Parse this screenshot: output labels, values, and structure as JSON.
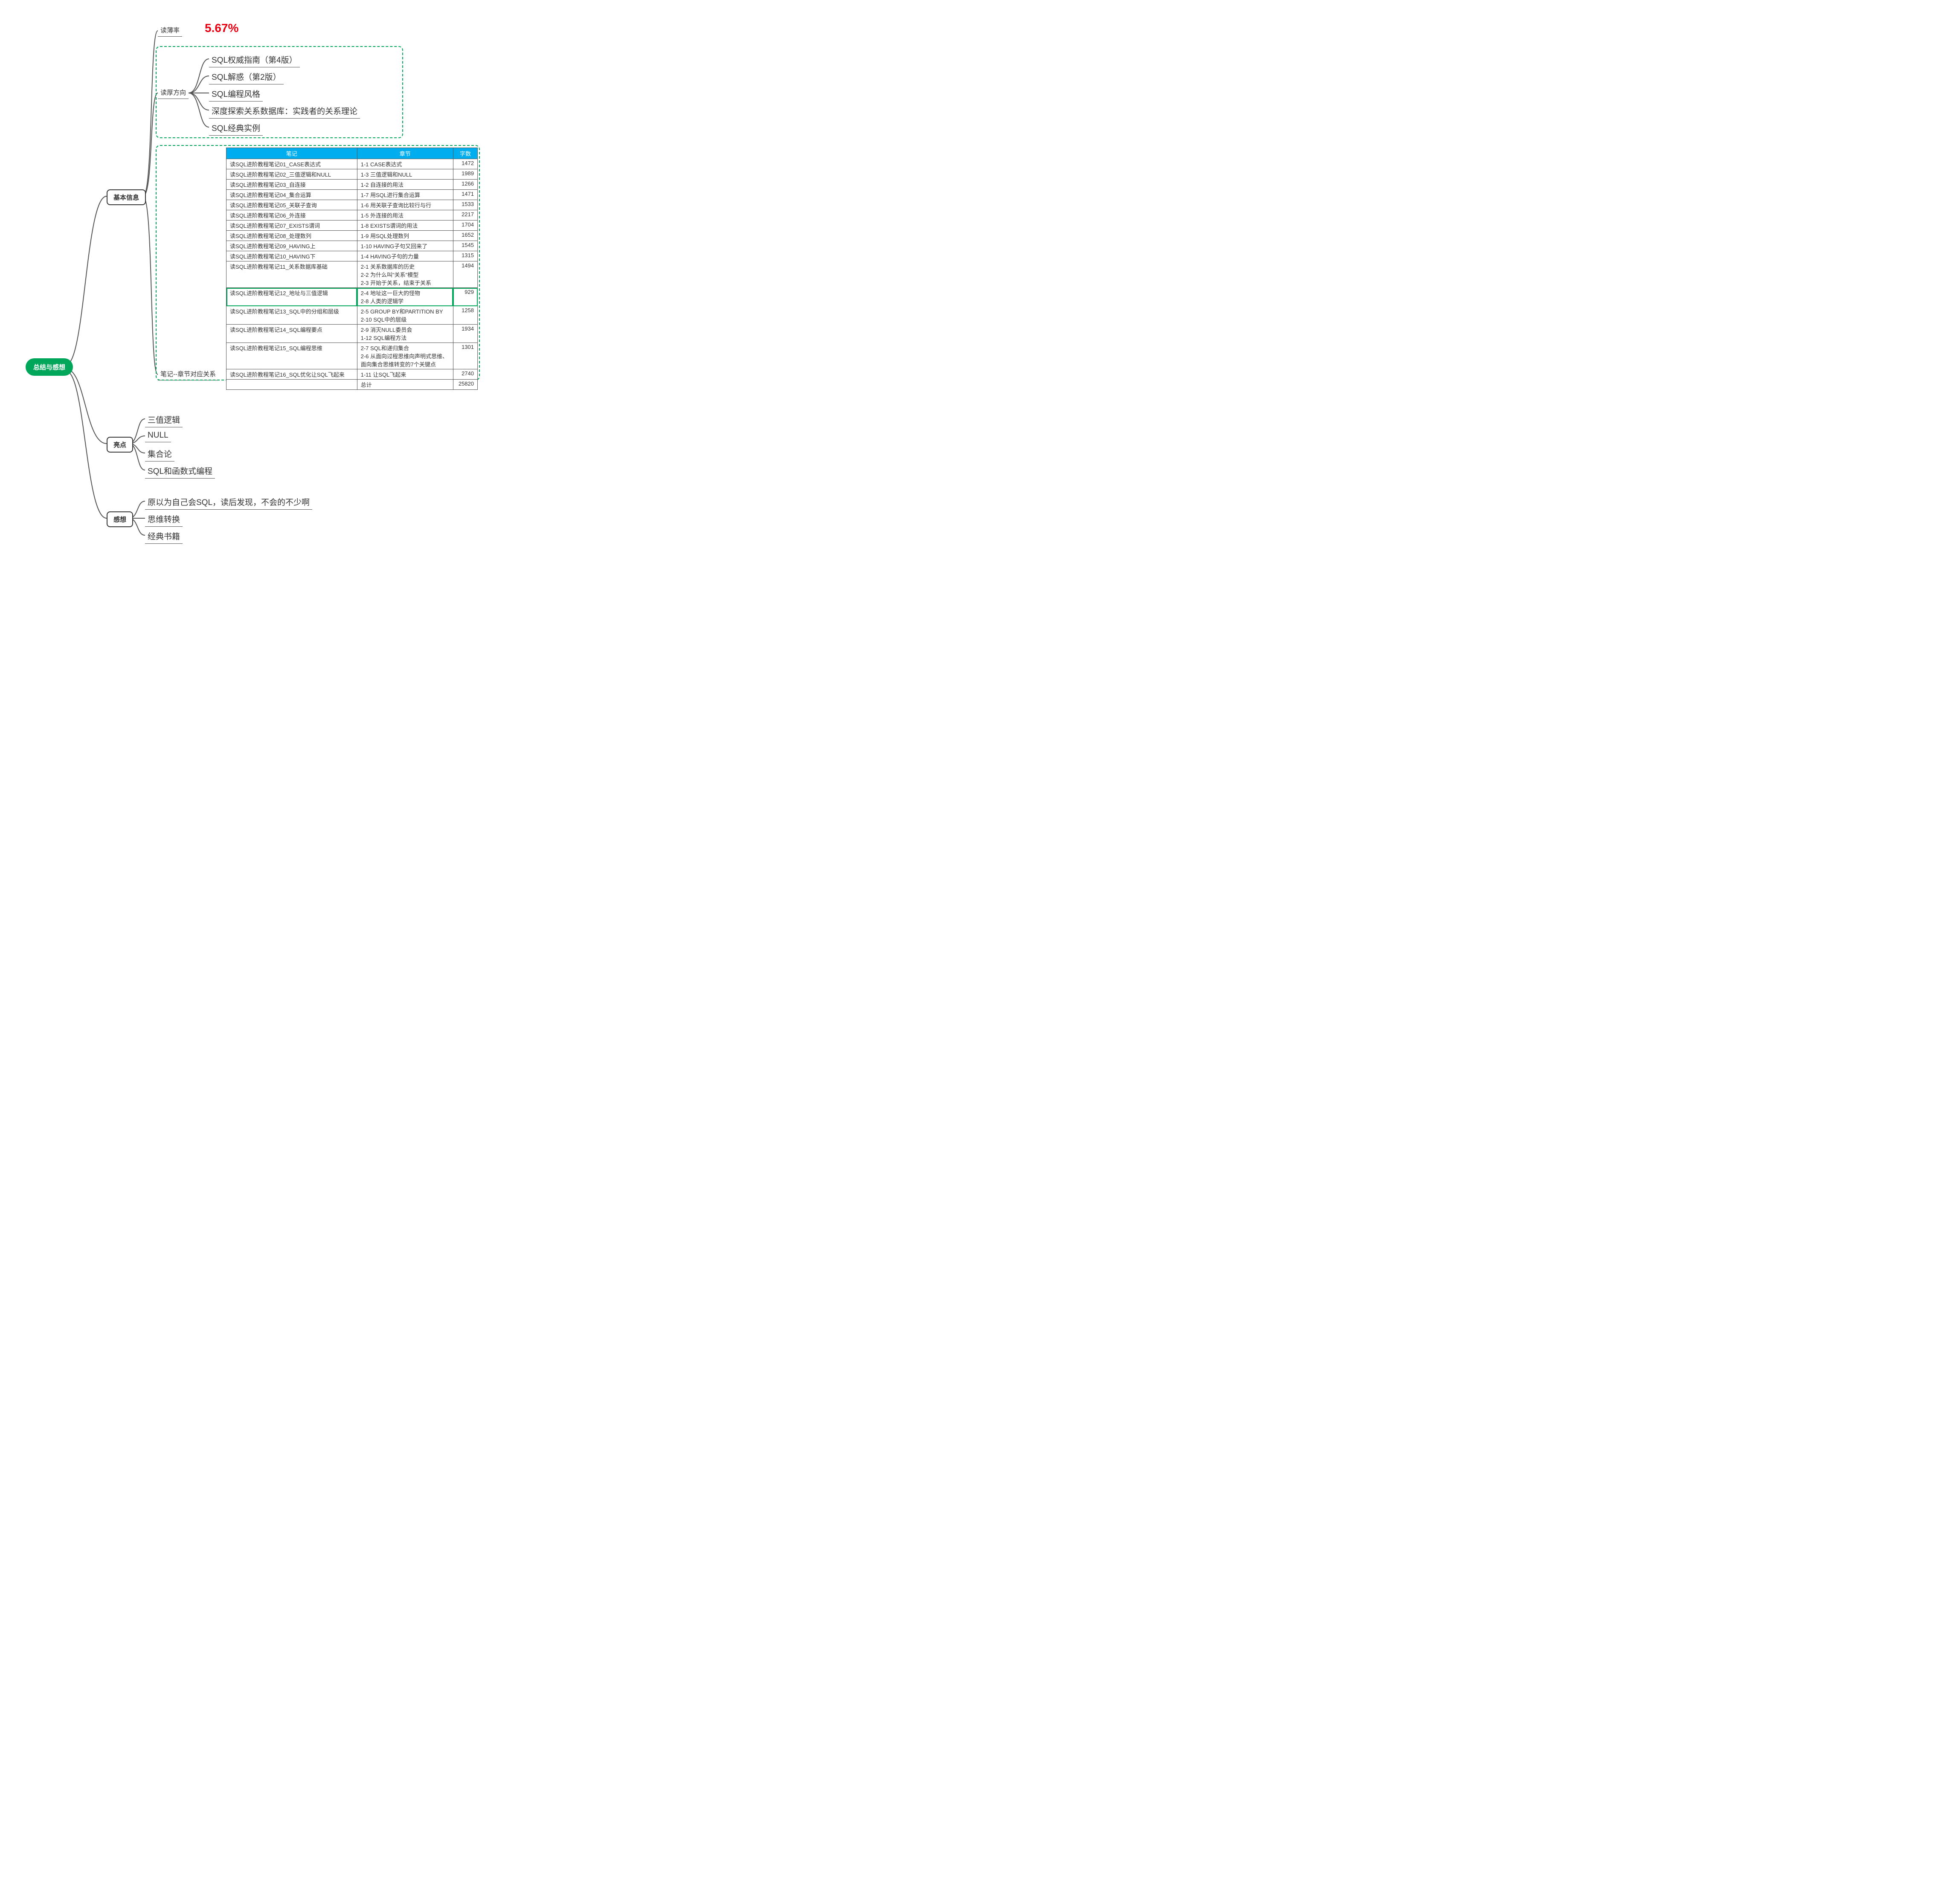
{
  "colors": {
    "root_bg": "#00a65a",
    "root_fg": "#ffffff",
    "accent_red": "#e60012",
    "table_header_bg": "#00aeef",
    "table_header_fg": "#ffffff",
    "border": "#555555",
    "green_dash": "#00a65a",
    "connector": "#555555"
  },
  "root": {
    "label": "总结与感想"
  },
  "branches": {
    "basic": {
      "label": "基本信息",
      "rate_label": "读薄率",
      "rate_value": "5.67%",
      "thicken_label": "读厚方向",
      "thicken_items": [
        "SQL权威指南（第4版）",
        "SQL解惑（第2版）",
        "SQL编程风格",
        "深度探索关系数据库：实践者的关系理论",
        "SQL经典实例"
      ],
      "notes_label": "笔记--章节对应关系",
      "table": {
        "headers": [
          "笔记",
          "章节",
          "字数"
        ],
        "highlight_row_index": 11,
        "rows": [
          {
            "note": "读SQL进阶教程笔记01_CASE表达式",
            "chapter": "1-1 CASE表达式",
            "words": 1472
          },
          {
            "note": "读SQL进阶教程笔记02_三值逻辑和NULL",
            "chapter": "1-3 三值逻辑和NULL",
            "words": 1989
          },
          {
            "note": "读SQL进阶教程笔记03_自连接",
            "chapter": "1-2 自连接的用法",
            "words": 1266
          },
          {
            "note": "读SQL进阶教程笔记04_集合运算",
            "chapter": "1-7 用SQL进行集合运算",
            "words": 1471
          },
          {
            "note": "读SQL进阶教程笔记05_关联子查询",
            "chapter": "1-6 用关联子查询比较行与行",
            "words": 1533
          },
          {
            "note": "读SQL进阶教程笔记06_外连接",
            "chapter": "1-5 外连接的用法",
            "words": 2217
          },
          {
            "note": "读SQL进阶教程笔记07_EXISTS谓词",
            "chapter": "1-8 EXISTS谓词的用法",
            "words": 1704
          },
          {
            "note": "读SQL进阶教程笔记08_处理数列",
            "chapter": "1-9 用SQL处理数列",
            "words": 1652
          },
          {
            "note": "读SQL进阶教程笔记09_HAVING上",
            "chapter": "1-10 HAVING子句又回来了",
            "words": 1545
          },
          {
            "note": "读SQL进阶教程笔记10_HAVING下",
            "chapter": "1-4 HAVING子句的力量",
            "words": 1315
          },
          {
            "note": "读SQL进阶教程笔记11_关系数据库基础",
            "chapter": "2-1 关系数据库的历史\n2-2 为什么叫\"关系\"模型\n2-3 开始于关系，结束于关系",
            "words": 1494
          },
          {
            "note": "读SQL进阶教程笔记12_地址与三值逻辑",
            "chapter": "2-4 地址这一巨大的怪物\n2-8 人类的逻辑学",
            "words": 929
          },
          {
            "note": "读SQL进阶教程笔记13_SQL中的分组和层级",
            "chapter": "2-5 GROUP BY和PARTITION BY\n2-10 SQL中的层级",
            "words": 1258
          },
          {
            "note": "读SQL进阶教程笔记14_SQL编程要点",
            "chapter": "2-9 消灭NULL委员会\n1-12 SQL编程方法",
            "words": 1934
          },
          {
            "note": "读SQL进阶教程笔记15_SQL编程思维",
            "chapter": "2-7 SQL和递归集合\n2-6 从面向过程思维向声明式思维、面向集合思维转变的7个关键点",
            "words": 1301
          },
          {
            "note": "读SQL进阶教程笔记16_SQL优化让SQL飞起来",
            "chapter": "1-11 让SQL飞起来",
            "words": 2740
          }
        ],
        "total_label": "总计",
        "total_words": 25820
      }
    },
    "highlights": {
      "label": "亮点",
      "items": [
        "三值逻辑",
        "NULL",
        "集合论",
        "SQL和函数式编程"
      ]
    },
    "thoughts": {
      "label": "感想",
      "items": [
        "原以为自己会SQL，读后发现，不会的不少啊",
        "思维转换",
        "经典书籍"
      ]
    }
  }
}
